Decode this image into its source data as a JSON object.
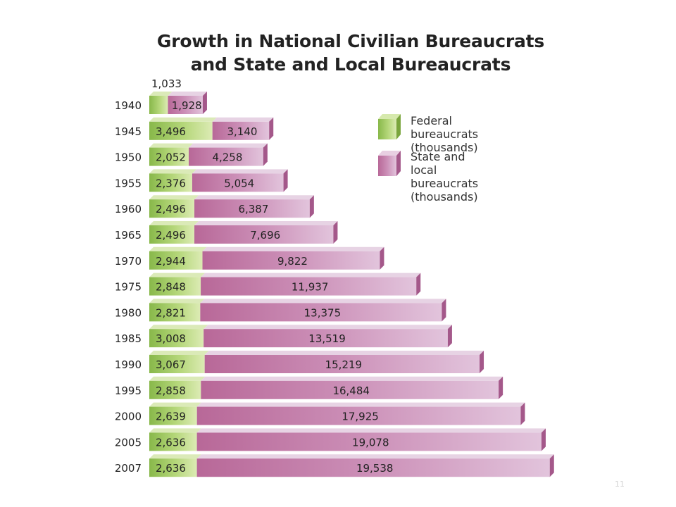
{
  "chart_data": {
    "type": "bar",
    "stacked": true,
    "orientation": "horizontal",
    "title_line1": "Growth in National Civilian Bureaucrats",
    "title_line2": "and State and Local Bureaucrats",
    "categories": [
      "1940",
      "1945",
      "1950",
      "1955",
      "1960",
      "1965",
      "1970",
      "1975",
      "1980",
      "1985",
      "1990",
      "1995",
      "2000",
      "2005",
      "2007"
    ],
    "series": [
      {
        "name": "Federal bureaucrats (thousands)",
        "values": [
          1033,
          3496,
          2052,
          2376,
          2496,
          2496,
          2944,
          2848,
          2821,
          3008,
          3067,
          2858,
          2639,
          2636,
          2636
        ],
        "labels": [
          "1,033",
          "3,496",
          "2,052",
          "2,376",
          "2,496",
          "2,496",
          "2,944",
          "2,848",
          "2,821",
          "3,008",
          "3,067",
          "2,858",
          "2,639",
          "2,636",
          "2,636"
        ],
        "color": "#a6cc6c"
      },
      {
        "name": "State and local bureaucrats (thousands)",
        "values": [
          1928,
          3140,
          4258,
          5054,
          6387,
          7696,
          9822,
          11937,
          13375,
          13519,
          15219,
          16484,
          17925,
          19078,
          19538
        ],
        "labels": [
          "1,928",
          "3,140",
          "4,258",
          "5,054",
          "6,387",
          "7,696",
          "9,822",
          "11,937",
          "13,375",
          "13,519",
          "15,219",
          "16,484",
          "17,925",
          "19,078",
          "19,538"
        ],
        "color": "#c67eac"
      }
    ],
    "legend": [
      {
        "line1": "Federal bureaucrats",
        "line2": "(thousands)"
      },
      {
        "line1": "State and local bureaucrats",
        "line2": "(thousands)"
      }
    ],
    "legend_position": "top-right",
    "grid": false
  },
  "footer": {
    "page_number": "11"
  }
}
